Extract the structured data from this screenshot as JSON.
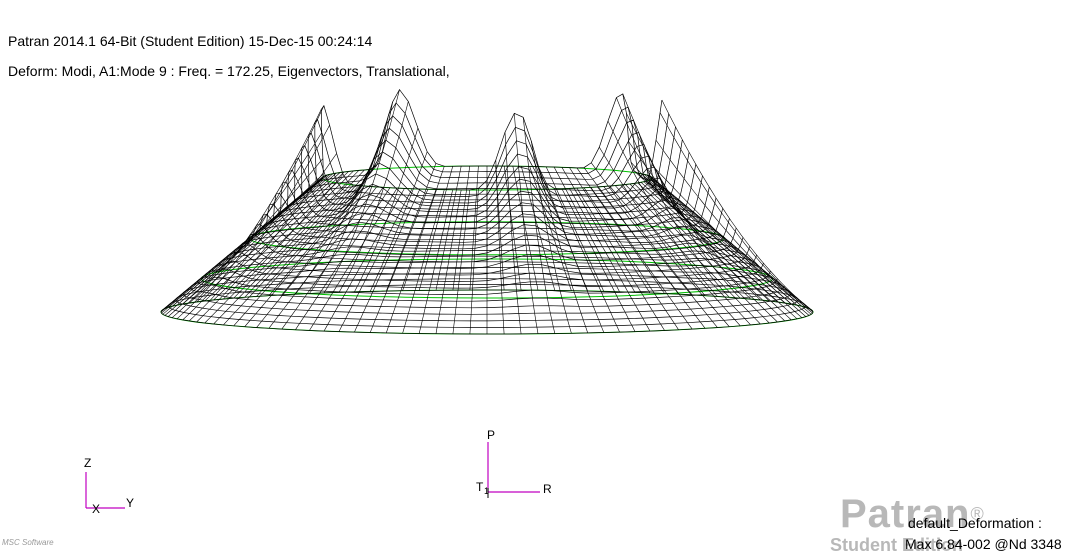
{
  "header": {
    "title": "Patran 2014.1 64-Bit  (Student Edition) 15-Dec-15 00:24:14",
    "deform_info": "Deform: Modi, A1:Mode 9 : Freq. = 172.25, Eigenvectors, Translational,"
  },
  "global_axes": {
    "vertical": "Z",
    "horizontal": "Y",
    "depth": "X"
  },
  "local_axes": {
    "vertical": "P",
    "horizontal": "R",
    "origin": "T",
    "origin_sub": "1"
  },
  "result_legend": {
    "title": "default_Deformation :",
    "info": "Max 6.84-002 @Nd 3348"
  },
  "watermark": {
    "logo": "Patran",
    "registered": "®",
    "edition": "Student Edition"
  },
  "bottom_logo": "MSC Software",
  "colors": {
    "mesh": "#000000",
    "undeformed": "#00c000",
    "axes": "#c000c0",
    "watermark": "#b8b8b8"
  }
}
